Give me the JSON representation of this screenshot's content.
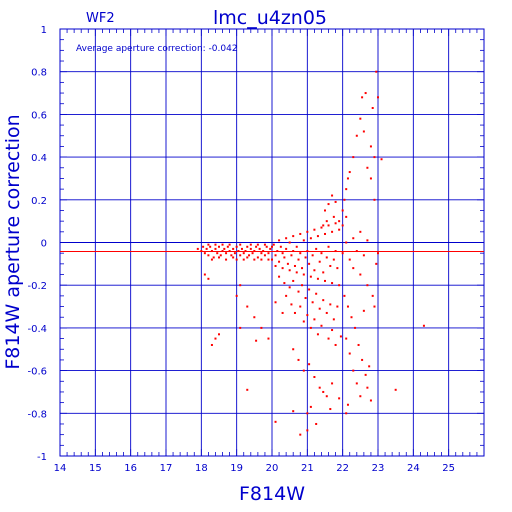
{
  "chart_data": {
    "type": "scatter",
    "title": "lmc_u4zn05",
    "corner_label": "WF2",
    "annotation": "Average aperture correction:  -0.042",
    "xlabel": "F814W",
    "ylabel": "F814W aperture correction",
    "xlim": [
      14,
      26
    ],
    "ylim": [
      -1,
      1
    ],
    "x_ticks": [
      14,
      15,
      16,
      17,
      18,
      19,
      20,
      21,
      22,
      23,
      24,
      25
    ],
    "y_ticks": [
      1,
      0.8,
      0.6,
      0.4,
      0.2,
      0,
      -0.2,
      -0.4,
      -0.6,
      -0.8,
      -1
    ],
    "x_tick_labels": [
      "14",
      "15",
      "16",
      "17",
      "18",
      "19",
      "20",
      "21",
      "22",
      "23",
      "24",
      "25"
    ],
    "y_tick_labels": [
      "1",
      "0.8",
      "0.6",
      "0.4",
      "0.2",
      "0",
      "-0.2",
      "-0.4",
      "-0.6",
      "-0.8",
      "-1"
    ],
    "grid": true,
    "reference_line": -0.042,
    "colors": {
      "axis": "#0000cc",
      "points": "#ff0000",
      "reference": "#ff0000",
      "background": "#ffffff"
    },
    "series": [
      {
        "points": [
          [
            17.9,
            -0.03
          ],
          [
            18.0,
            -0.04
          ],
          [
            18.05,
            -0.02
          ],
          [
            18.1,
            -0.05
          ],
          [
            18.15,
            -0.03
          ],
          [
            18.2,
            -0.06
          ],
          [
            18.25,
            -0.02
          ],
          [
            18.3,
            -0.04
          ],
          [
            18.35,
            -0.07
          ],
          [
            18.4,
            -0.03
          ],
          [
            18.45,
            -0.05
          ],
          [
            18.5,
            -0.02
          ],
          [
            18.55,
            -0.06
          ],
          [
            18.6,
            -0.04
          ],
          [
            18.65,
            -0.03
          ],
          [
            18.7,
            -0.05
          ],
          [
            18.75,
            -0.02
          ],
          [
            18.8,
            -0.04
          ],
          [
            18.85,
            -0.06
          ],
          [
            18.9,
            -0.03
          ],
          [
            18.95,
            -0.05
          ],
          [
            19.0,
            -0.02
          ],
          [
            19.05,
            -0.04
          ],
          [
            19.1,
            -0.06
          ],
          [
            19.15,
            -0.03
          ],
          [
            19.2,
            -0.05
          ],
          [
            19.25,
            -0.04
          ],
          [
            19.3,
            -0.02
          ],
          [
            19.35,
            -0.06
          ],
          [
            19.4,
            -0.03
          ],
          [
            19.45,
            -0.05
          ],
          [
            19.5,
            -0.04
          ],
          [
            19.55,
            -0.02
          ],
          [
            19.6,
            -0.07
          ],
          [
            19.65,
            -0.03
          ],
          [
            19.7,
            -0.05
          ],
          [
            19.75,
            -0.04
          ],
          [
            19.8,
            -0.06
          ],
          [
            19.85,
            -0.02
          ],
          [
            19.9,
            -0.05
          ],
          [
            19.95,
            -0.03
          ],
          [
            20.0,
            -0.08
          ],
          [
            20.05,
            -0.01
          ],
          [
            20.1,
            -0.06
          ],
          [
            20.15,
            -0.04
          ],
          [
            20.2,
            -0.09
          ],
          [
            20.25,
            -0.02
          ],
          [
            20.3,
            -0.05
          ],
          [
            20.35,
            -0.07
          ],
          [
            20.4,
            -0.03
          ],
          [
            20.45,
            -0.1
          ],
          [
            20.5,
            0.0
          ],
          [
            20.55,
            -0.06
          ],
          [
            20.6,
            -0.04
          ],
          [
            20.65,
            -0.11
          ],
          [
            20.7,
            -0.02
          ],
          [
            20.75,
            -0.08
          ],
          [
            20.8,
            -0.05
          ],
          [
            20.85,
            -0.12
          ],
          [
            20.9,
            0.01
          ],
          [
            20.95,
            -0.07
          ],
          [
            21.0,
            -0.04
          ],
          [
            21.05,
            -0.1
          ],
          [
            21.1,
            0.02
          ],
          [
            21.15,
            -0.06
          ],
          [
            21.2,
            -0.13
          ],
          [
            21.25,
            -0.03
          ],
          [
            21.3,
            0.03
          ],
          [
            21.35,
            -0.09
          ],
          [
            21.4,
            -0.05
          ],
          [
            21.45,
            -0.14
          ],
          [
            21.5,
            0.04
          ],
          [
            21.55,
            -0.07
          ],
          [
            21.6,
            -0.02
          ],
          [
            21.65,
            -0.11
          ],
          [
            21.7,
            0.05
          ],
          [
            21.75,
            -0.08
          ],
          [
            21.8,
            -0.04
          ],
          [
            21.85,
            -0.12
          ],
          [
            21.9,
            0.06
          ],
          [
            18.2,
            -0.01
          ],
          [
            18.3,
            -0.08
          ],
          [
            18.4,
            -0.01
          ],
          [
            18.5,
            -0.07
          ],
          [
            18.6,
            -0.01
          ],
          [
            18.7,
            -0.08
          ],
          [
            18.8,
            -0.01
          ],
          [
            18.9,
            -0.07
          ],
          [
            19.0,
            -0.08
          ],
          [
            19.1,
            -0.01
          ],
          [
            19.2,
            -0.08
          ],
          [
            19.3,
            -0.07
          ],
          [
            19.4,
            -0.01
          ],
          [
            19.5,
            -0.08
          ],
          [
            19.6,
            -0.01
          ],
          [
            19.7,
            -0.08
          ],
          [
            19.8,
            -0.01
          ],
          [
            19.9,
            -0.08
          ],
          [
            20.0,
            -0.02
          ],
          [
            20.1,
            -0.11
          ],
          [
            20.2,
            0.01
          ],
          [
            20.3,
            -0.12
          ],
          [
            20.4,
            0.02
          ],
          [
            20.5,
            -0.13
          ],
          [
            20.6,
            0.03
          ],
          [
            20.7,
            -0.14
          ],
          [
            20.8,
            0.04
          ],
          [
            20.9,
            -0.15
          ],
          [
            21.0,
            0.05
          ],
          [
            21.1,
            -0.16
          ],
          [
            21.2,
            0.06
          ],
          [
            21.3,
            -0.17
          ],
          [
            21.4,
            0.07
          ],
          [
            21.5,
            -0.18
          ],
          [
            21.6,
            0.08
          ],
          [
            21.7,
            -0.19
          ],
          [
            21.8,
            0.09
          ],
          [
            21.9,
            -0.2
          ],
          [
            20.2,
            -0.16
          ],
          [
            20.35,
            -0.19
          ],
          [
            20.5,
            -0.21
          ],
          [
            20.6,
            -0.18
          ],
          [
            20.75,
            -0.23
          ],
          [
            20.85,
            -0.2
          ],
          [
            20.95,
            -0.26
          ],
          [
            21.05,
            -0.22
          ],
          [
            21.15,
            -0.28
          ],
          [
            21.25,
            -0.24
          ],
          [
            21.35,
            -0.31
          ],
          [
            21.45,
            -0.27
          ],
          [
            21.55,
            -0.33
          ],
          [
            21.65,
            -0.29
          ],
          [
            21.75,
            -0.36
          ],
          [
            21.85,
            -0.3
          ],
          [
            20.4,
            -0.25
          ],
          [
            20.55,
            -0.29
          ],
          [
            20.65,
            -0.33
          ],
          [
            20.8,
            -0.3
          ],
          [
            20.9,
            -0.37
          ],
          [
            21.0,
            -0.34
          ],
          [
            21.1,
            -0.4
          ],
          [
            21.2,
            -0.36
          ],
          [
            21.3,
            -0.43
          ],
          [
            21.4,
            -0.39
          ],
          [
            21.6,
            -0.45
          ],
          [
            21.7,
            -0.41
          ],
          [
            21.8,
            -0.48
          ],
          [
            21.95,
            -0.44
          ],
          [
            19.0,
            -0.25
          ],
          [
            19.1,
            -0.2
          ],
          [
            19.3,
            -0.3
          ],
          [
            19.5,
            -0.35
          ],
          [
            19.7,
            -0.4
          ],
          [
            19.9,
            -0.45
          ],
          [
            20.1,
            -0.28
          ],
          [
            20.3,
            -0.33
          ],
          [
            18.3,
            -0.48
          ],
          [
            18.4,
            -0.45
          ],
          [
            18.5,
            -0.43
          ],
          [
            18.1,
            -0.15
          ],
          [
            18.2,
            -0.17
          ],
          [
            20.6,
            -0.5
          ],
          [
            20.75,
            -0.55
          ],
          [
            20.9,
            -0.6
          ],
          [
            21.05,
            -0.57
          ],
          [
            21.2,
            -0.63
          ],
          [
            21.35,
            -0.68
          ],
          [
            21.55,
            -0.72
          ],
          [
            21.7,
            -0.66
          ],
          [
            21.0,
            -0.8
          ],
          [
            21.1,
            -0.77
          ],
          [
            21.25,
            -0.85
          ],
          [
            21.45,
            -0.7
          ],
          [
            21.65,
            -0.78
          ],
          [
            21.9,
            -0.73
          ],
          [
            22.1,
            -0.8
          ],
          [
            22.15,
            -0.76
          ],
          [
            20.8,
            -0.9
          ],
          [
            21.0,
            -0.88
          ],
          [
            20.6,
            -0.79
          ],
          [
            20.1,
            -0.84
          ],
          [
            19.3,
            -0.69
          ],
          [
            19.55,
            -0.46
          ],
          [
            19.1,
            -0.4
          ],
          [
            22.0,
            -0.05
          ],
          [
            22.1,
            0.0
          ],
          [
            22.2,
            -0.08
          ],
          [
            22.3,
            0.02
          ],
          [
            22.4,
            -0.04
          ],
          [
            22.5,
            0.05
          ],
          [
            22.6,
            -0.06
          ],
          [
            22.7,
            0.01
          ],
          [
            22.05,
            -0.25
          ],
          [
            22.15,
            -0.3
          ],
          [
            22.25,
            -0.35
          ],
          [
            22.35,
            -0.4
          ],
          [
            22.45,
            -0.48
          ],
          [
            22.55,
            -0.55
          ],
          [
            22.65,
            -0.62
          ],
          [
            22.75,
            -0.58
          ],
          [
            22.1,
            -0.45
          ],
          [
            22.2,
            -0.52
          ],
          [
            22.3,
            -0.6
          ],
          [
            22.4,
            -0.66
          ],
          [
            22.5,
            -0.72
          ],
          [
            22.7,
            -0.68
          ],
          [
            22.8,
            -0.74
          ],
          [
            21.9,
            0.1
          ],
          [
            22.0,
            0.15
          ],
          [
            22.05,
            0.2
          ],
          [
            22.1,
            0.25
          ],
          [
            22.15,
            0.3
          ],
          [
            22.2,
            0.33
          ],
          [
            22.1,
            0.12
          ],
          [
            22.0,
            0.08
          ],
          [
            22.3,
            0.4
          ],
          [
            22.4,
            0.5
          ],
          [
            22.5,
            0.58
          ],
          [
            22.6,
            0.52
          ],
          [
            22.55,
            0.68
          ],
          [
            22.65,
            0.7
          ],
          [
            22.8,
            0.45
          ],
          [
            22.9,
            0.4
          ],
          [
            22.95,
            0.8
          ],
          [
            23.0,
            0.68
          ],
          [
            22.85,
            0.63
          ],
          [
            22.7,
            0.35
          ],
          [
            22.8,
            0.3
          ],
          [
            22.9,
            0.2
          ],
          [
            23.1,
            0.39
          ],
          [
            21.5,
            0.15
          ],
          [
            21.6,
            0.18
          ],
          [
            21.7,
            0.22
          ],
          [
            21.8,
            0.19
          ],
          [
            21.55,
            0.1
          ],
          [
            21.75,
            0.12
          ],
          [
            21.45,
            0.08
          ],
          [
            22.3,
            -0.12
          ],
          [
            22.5,
            -0.15
          ],
          [
            22.7,
            -0.2
          ],
          [
            22.85,
            -0.25
          ],
          [
            22.95,
            -0.1
          ],
          [
            23.0,
            -0.05
          ],
          [
            24.3,
            -0.39
          ],
          [
            23.5,
            -0.69
          ],
          [
            22.9,
            -0.3
          ],
          [
            22.6,
            -0.32
          ]
        ]
      }
    ]
  }
}
